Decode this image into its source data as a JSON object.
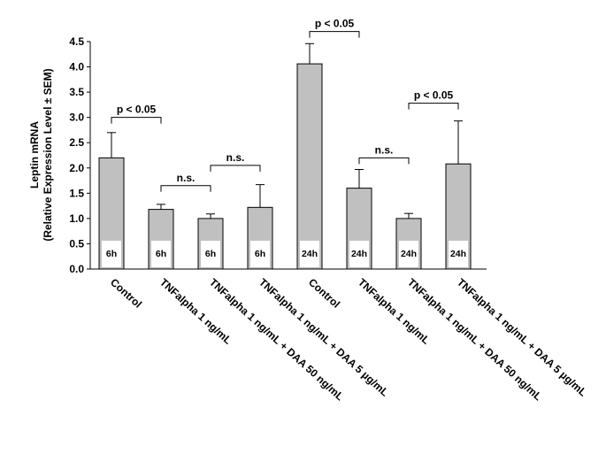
{
  "chart_data": {
    "type": "bar",
    "title": "",
    "ylabel_line1": "Leptin mRNA",
    "ylabel_line2": "(Relative Expression Level ± SEM)",
    "ylim": [
      0,
      4.5
    ],
    "ytick_step": 0.5,
    "y_ticks": [
      "0.0",
      "0.5",
      "1.0",
      "1.5",
      "2.0",
      "2.5",
      "3.0",
      "3.5",
      "4.0",
      "4.5"
    ],
    "bar_color": "#c0c0c0",
    "categories": [
      "Control",
      "TNFalpha 1 ng/mL",
      "TNFalpha 1 ng/mL + DAA 50 ng/mL",
      "TNFalpha 1 ng/mL + DAA 5 µg/mL",
      "Control",
      "TNFalpha 1 ng/mL",
      "TNFalpha 1 ng/mL + DAA 50 ng/mL",
      "TNFalpha 1 ng/mL + DAA 5 µg/mL"
    ],
    "time_labels": [
      "6h",
      "6h",
      "6h",
      "6h",
      "24h",
      "24h",
      "24h",
      "24h"
    ],
    "values": [
      2.2,
      1.18,
      1.0,
      1.22,
      4.06,
      1.6,
      1.0,
      2.08
    ],
    "errors": [
      0.5,
      0.1,
      0.09,
      0.45,
      0.4,
      0.37,
      0.1,
      0.85
    ],
    "annotations": [
      {
        "from": 0,
        "to": 1,
        "y": 3.0,
        "text": "p < 0.05"
      },
      {
        "from": 1,
        "to": 2,
        "y": 1.65,
        "text": "n.s."
      },
      {
        "from": 2,
        "to": 3,
        "y": 2.05,
        "text": "n.s."
      },
      {
        "from": 4,
        "to": 5,
        "y": 4.7,
        "text": "p < 0.05"
      },
      {
        "from": 5,
        "to": 6,
        "y": 2.2,
        "text": "n.s."
      },
      {
        "from": 6,
        "to": 7,
        "y": 3.28,
        "text": "p < 0.05"
      }
    ]
  }
}
